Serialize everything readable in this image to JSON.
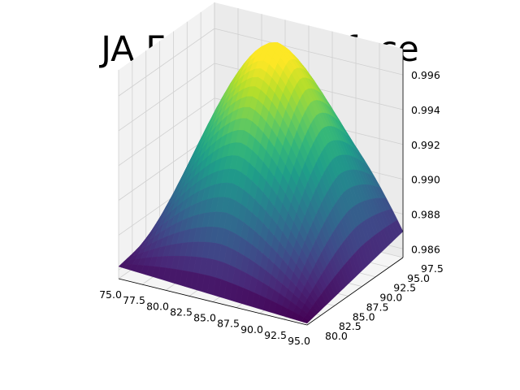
{
  "chart_data": {
    "type": "surface",
    "title": "JA Frechet Surface",
    "xlabel": "",
    "ylabel": "",
    "zlabel": "",
    "x_range": [
      75.0,
      95.0
    ],
    "y_range": [
      80.0,
      97.5
    ],
    "z_range": [
      0.9855,
      0.9975
    ],
    "x_ticks": [
      "75.0",
      "77.5",
      "80.0",
      "82.5",
      "85.0",
      "87.5",
      "90.0",
      "92.5",
      "95.0"
    ],
    "y_ticks": [
      "80.0",
      "82.5",
      "85.0",
      "87.5",
      "90.0",
      "92.5",
      "95.0",
      "97.5"
    ],
    "z_ticks": [
      "0.986",
      "0.988",
      "0.990",
      "0.992",
      "0.994",
      "0.996"
    ],
    "z_at_corners": {
      "x75_y80": 0.9862,
      "x95_y80": 0.9856,
      "x75_y97.5": 0.9875,
      "x95_y97.5": 0.987
    },
    "z_max": 0.9972,
    "colormap": "viridis",
    "grid": true
  }
}
